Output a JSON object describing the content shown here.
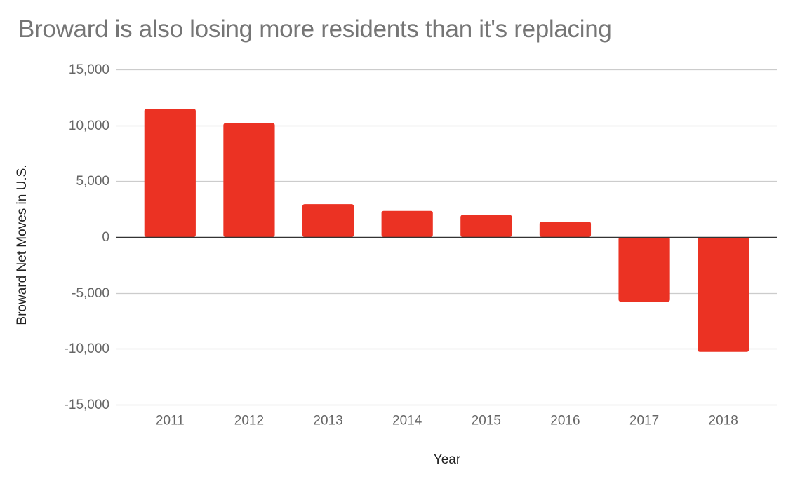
{
  "chart_data": {
    "type": "bar",
    "title": "Broward is also losing more residents than it's replacing",
    "xlabel": "Year",
    "ylabel": "Broward Net Moves in U.S.",
    "categories": [
      "2011",
      "2012",
      "2013",
      "2014",
      "2015",
      "2016",
      "2017",
      "2018"
    ],
    "series": [
      {
        "name": "Broward Net Moves in U.S.",
        "values": [
          11480,
          10200,
          2940,
          2340,
          1980,
          1380,
          -5780,
          -10280
        ],
        "color": "#EB3223"
      }
    ],
    "ylim": [
      -15000,
      15000
    ],
    "yticks": [
      15000,
      10000,
      5000,
      0,
      -5000,
      -10000,
      -15000
    ],
    "ytick_labels": [
      "15,000",
      "10,000",
      "5,000",
      "0",
      "-5,000",
      "-10,000",
      "-15,000"
    ],
    "grid": true,
    "legend": "none",
    "colors": {
      "bar": "#EB3223",
      "grid": "#cccccc",
      "zero_line": "#333333",
      "tick_label": "#666666",
      "title": "#757575",
      "axis_title": "#222222"
    }
  }
}
